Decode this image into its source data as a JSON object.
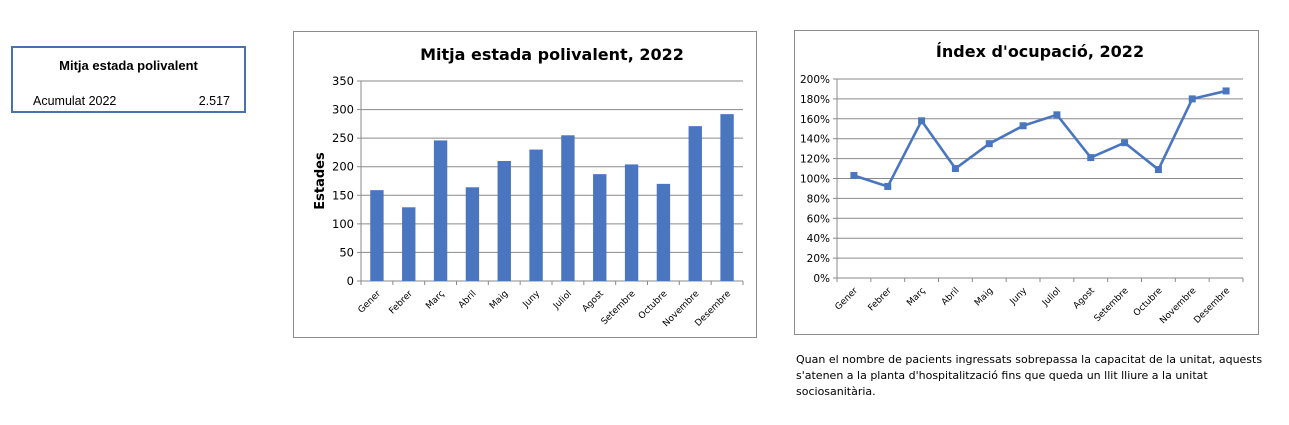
{
  "summary": {
    "title": "Mitja estada polivalent",
    "label": "Acumulat 2022",
    "value": "2.517"
  },
  "note": {
    "lines": [
      "Quan el nombre de pacients ingressats sobrepassa la capacitat de la unitat, aquests",
      "s'atenen a la planta d'hospitalització fins que queda un llit lliure a la unitat",
      "sociosanitària."
    ]
  },
  "chart_data": [
    {
      "type": "bar",
      "title": "Mitja estada polivalent, 2022",
      "xlabel": "",
      "ylabel": "Estades",
      "ylim": [
        0,
        350
      ],
      "yticks": [
        0,
        50,
        100,
        150,
        200,
        250,
        300,
        350
      ],
      "ytick_labels": [
        "0",
        "50",
        "100",
        "150",
        "200",
        "250",
        "300",
        "350"
      ],
      "grid": true,
      "color": "#4a76c0",
      "categories": [
        "Gener",
        "Febrer",
        "Març",
        "Abril",
        "Maig",
        "Juny",
        "Juliol",
        "Agost",
        "Setembre",
        "Octubre",
        "Novembre",
        "Desembre"
      ],
      "values": [
        159,
        129,
        246,
        164,
        210,
        230,
        255,
        187,
        204,
        170,
        271,
        292
      ]
    },
    {
      "type": "line",
      "title": "Índex d'ocupació, 2022",
      "xlabel": "",
      "ylabel": "",
      "ylim": [
        0,
        200
      ],
      "yticks": [
        0,
        20,
        40,
        60,
        80,
        100,
        120,
        140,
        160,
        180,
        200
      ],
      "ytick_labels": [
        "0%",
        "20%",
        "40%",
        "60%",
        "80%",
        "100%",
        "120%",
        "140%",
        "160%",
        "180%",
        "200%"
      ],
      "grid": true,
      "color": "#4a76c0",
      "categories": [
        "Gener",
        "Febrer",
        "Març",
        "Abril",
        "Maig",
        "Juny",
        "Juliol",
        "Agost",
        "Setembre",
        "Octubre",
        "Novembre",
        "Desembre"
      ],
      "values": [
        103,
        92,
        158,
        110,
        135,
        153,
        164,
        121,
        136,
        109,
        180,
        188
      ]
    }
  ]
}
